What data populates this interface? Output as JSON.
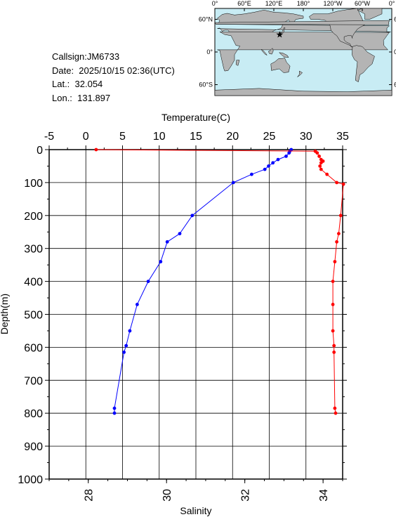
{
  "info": {
    "callsign": "Callsign:JM6733",
    "date": "Date:  2025/10/15 02:36(UTC)",
    "lat": "Lat.:  32.054",
    "lon": "Lon.:  131.897"
  },
  "map": {
    "lon_ticks": [
      "0°",
      "60°E",
      "120°E",
      "180°",
      "120°W",
      "60°W",
      "0°"
    ],
    "lat_ticks": [
      "60°N",
      "0°",
      "60°S"
    ],
    "station": {
      "lat": 32.054,
      "lon": 131.897
    },
    "colors": {
      "ocean": "#c8ecf4",
      "land": "#b4b4b4",
      "station": "#ff0000"
    }
  },
  "chart_data": {
    "type": "line",
    "ylabel": "Depth(m)",
    "ylim": [
      1000,
      0
    ],
    "y_ticks": [
      0,
      100,
      200,
      300,
      400,
      500,
      600,
      700,
      800,
      900,
      1000
    ],
    "temperature_axis": {
      "label": "Temperature(C)",
      "lim": [
        -5,
        35
      ],
      "ticks": [
        -5,
        0,
        5,
        10,
        15,
        20,
        25,
        30,
        35
      ]
    },
    "salinity_axis": {
      "label": "Salinity",
      "lim": [
        27,
        34.5
      ],
      "ticks": [
        28,
        30,
        32,
        34
      ]
    },
    "grid": true,
    "series": [
      {
        "axis": "temperature",
        "color": "#0000ff",
        "depth": [
          0,
          5,
          10,
          20,
          30,
          40,
          50,
          60,
          75,
          100,
          200,
          255,
          280,
          340,
          400,
          470,
          550,
          595,
          615,
          785,
          800
        ],
        "values": [
          28.0,
          27.8,
          27.7,
          27.3,
          26.2,
          25.5,
          24.9,
          24.4,
          22.6,
          20.1,
          14.5,
          12.8,
          11.1,
          10.2,
          8.5,
          7.0,
          6.0,
          5.5,
          5.2,
          3.9,
          3.9
        ]
      },
      {
        "axis": "salinity",
        "color": "#ff0000",
        "depth": [
          0,
          5,
          10,
          20,
          30,
          35,
          40,
          50,
          60,
          75,
          100,
          105,
          200,
          255,
          280,
          340,
          400,
          470,
          550,
          595,
          615,
          785,
          800
        ],
        "values": [
          28.2,
          33.8,
          33.85,
          33.9,
          33.95,
          34.0,
          33.95,
          33.92,
          33.95,
          34.1,
          34.35,
          34.52,
          34.45,
          34.4,
          34.35,
          34.3,
          34.25,
          34.25,
          34.25,
          34.28,
          34.28,
          34.3,
          34.32
        ]
      }
    ]
  }
}
